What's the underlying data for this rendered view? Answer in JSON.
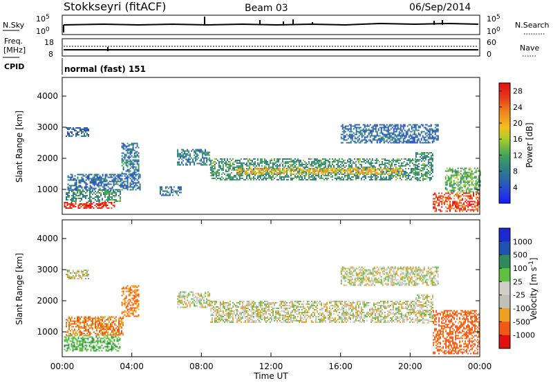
{
  "header": {
    "title": "Stokkseyri (fitACF)",
    "beam": "Beam 03",
    "date": "06/Sep/2014"
  },
  "noise_panel": {
    "left_label": "N.Sky",
    "left_ticks": [
      "10^5",
      "10^0"
    ],
    "right_ticks": [
      "10^5",
      "10^0"
    ],
    "right_label": "N.Search"
  },
  "freq_panel": {
    "left_label_1": "Freq.",
    "left_label_2": "[MHz]",
    "left_ticks": [
      "18",
      "8"
    ],
    "right_ticks": [
      "60",
      "0"
    ],
    "right_label": "Nave"
  },
  "cpid_panel": {
    "label": "CPID",
    "text": "normal (fast) 151"
  },
  "colors": {
    "power": [
      "#1a1aff",
      "#2850c8",
      "#2e7a8c",
      "#3fa55a",
      "#a8cc2a",
      "#f2c01e",
      "#f08a1e",
      "#e83a1a",
      "#e01010"
    ],
    "velocity": [
      "#e01010",
      "#f05a14",
      "#f0a020",
      "#c0c0b8",
      "#cfcfc8",
      "#60c040",
      "#2e8a56",
      "#2050b0",
      "#1a2ad0"
    ]
  },
  "chart_data": [
    {
      "type": "heatmap",
      "name": "power",
      "ylabel": "Slant Range [km]",
      "yticks": [
        "1000",
        "2000",
        "3000",
        "4000"
      ],
      "ylim": [
        200,
        4600
      ],
      "xlim": [
        0,
        24
      ],
      "colorbar_label": "Power [dB]",
      "colorbar_ticks": [
        "4",
        "8",
        "12",
        "16",
        "20",
        "24",
        "28"
      ],
      "colorbar_range": [
        0,
        30
      ],
      "echo_bands": [
        {
          "t0": 0.1,
          "t1": 3.0,
          "r0": 380,
          "r1": 600,
          "value": 28
        },
        {
          "t0": 0.2,
          "t1": 3.3,
          "r0": 600,
          "r1": 1000,
          "value": 10
        },
        {
          "t0": 0.3,
          "t1": 4.5,
          "r0": 1000,
          "r1": 1500,
          "value": 6
        },
        {
          "t0": 3.4,
          "t1": 4.4,
          "r0": 1500,
          "r1": 2500,
          "value": 7
        },
        {
          "t0": 0.2,
          "t1": 1.5,
          "r0": 2700,
          "r1": 3000,
          "value": 6
        },
        {
          "t0": 5.6,
          "t1": 6.8,
          "r0": 800,
          "r1": 1100,
          "value": 6
        },
        {
          "t0": 6.6,
          "t1": 8.5,
          "r0": 1800,
          "r1": 2300,
          "value": 8
        },
        {
          "t0": 8.5,
          "t1": 20.3,
          "r0": 1300,
          "r1": 2000,
          "value": 10
        },
        {
          "t0": 10.0,
          "t1": 19.5,
          "r0": 1500,
          "r1": 1700,
          "value": 20
        },
        {
          "t0": 16.0,
          "t1": 21.6,
          "r0": 2500,
          "r1": 3100,
          "value": 6
        },
        {
          "t0": 20.3,
          "t1": 21.3,
          "r0": 1300,
          "r1": 2200,
          "value": 10
        },
        {
          "t0": 21.3,
          "t1": 24.0,
          "r0": 300,
          "r1": 900,
          "value": 26
        },
        {
          "t0": 22.0,
          "t1": 24.0,
          "r0": 900,
          "r1": 1700,
          "value": 12
        }
      ]
    },
    {
      "type": "heatmap",
      "name": "velocity",
      "ylabel": "Slant Range [km]",
      "yticks": [
        "1000",
        "2000",
        "3000",
        "4000"
      ],
      "ylim": [
        200,
        4600
      ],
      "xlim": [
        0,
        24
      ],
      "xlabel": "Time UT",
      "xticks": [
        "00:00",
        "04:00",
        "08:00",
        "12:00",
        "16:00",
        "20:00",
        "00:00"
      ],
      "colorbar_label": "Velocity [m s^-1]",
      "colorbar_ticks": [
        "1000",
        "500",
        "100",
        "25",
        "-25",
        "-100",
        "-500",
        "-1000"
      ],
      "echo_bands": [
        {
          "t0": 0.1,
          "t1": 3.3,
          "r0": 380,
          "r1": 900,
          "value": 250
        },
        {
          "t0": 0.2,
          "t1": 3.5,
          "r0": 900,
          "r1": 1500,
          "value": -300
        },
        {
          "t0": 3.4,
          "t1": 4.4,
          "r0": 1500,
          "r1": 2500,
          "value": -300
        },
        {
          "t0": 0.2,
          "t1": 1.5,
          "r0": 2700,
          "r1": 3000,
          "value": 0
        },
        {
          "t0": 6.6,
          "t1": 8.5,
          "r0": 1800,
          "r1": 2300,
          "value": 0
        },
        {
          "t0": 8.5,
          "t1": 20.3,
          "r0": 1300,
          "r1": 2000,
          "value": 0
        },
        {
          "t0": 16.0,
          "t1": 21.6,
          "r0": 2500,
          "r1": 3100,
          "value": 0
        },
        {
          "t0": 20.3,
          "t1": 21.3,
          "r0": 1300,
          "r1": 2200,
          "value": 0
        },
        {
          "t0": 21.3,
          "t1": 24.0,
          "r0": 300,
          "r1": 1700,
          "value": -400
        }
      ]
    }
  ]
}
